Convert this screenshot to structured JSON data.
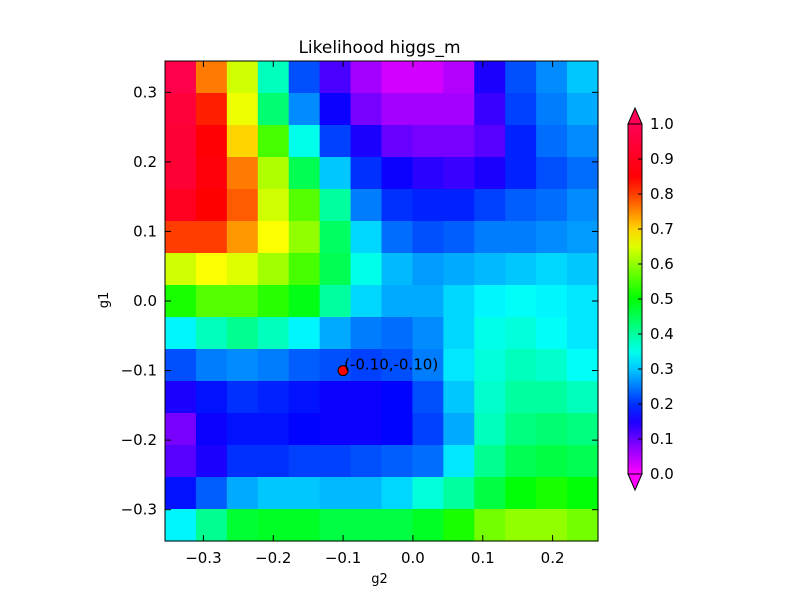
{
  "chart_data": {
    "type": "heatmap",
    "title": "Likelihood higgs_m",
    "xlabel": "g2",
    "ylabel": "g1",
    "xlim": [
      -0.355,
      0.265
    ],
    "ylim": [
      -0.345,
      0.345
    ],
    "x_ticks": [
      -0.3,
      -0.2,
      -0.1,
      0.0,
      0.1,
      0.2
    ],
    "x_tick_labels": [
      "−0.3",
      "−0.2",
      "−0.1",
      "0.0",
      "0.1",
      "0.2"
    ],
    "y_ticks": [
      0.3,
      0.2,
      0.1,
      0.0,
      -0.1,
      -0.2,
      -0.3
    ],
    "y_tick_labels": [
      "0.3",
      "0.2",
      "0.1",
      "0.0",
      "−0.1",
      "−0.2",
      "−0.3"
    ],
    "colorbar": {
      "ticks": [
        1.0,
        0.9,
        0.8,
        0.7,
        0.6,
        0.5,
        0.4,
        0.3,
        0.2,
        0.1,
        0.0
      ],
      "tick_labels": [
        "1.0",
        "0.9",
        "0.8",
        "0.7",
        "0.6",
        "0.5",
        "0.4",
        "0.3",
        "0.2",
        "0.1",
        "0.0"
      ],
      "range": [
        0,
        1
      ],
      "colormap": "gist_rainbow"
    },
    "marker": {
      "x": -0.1,
      "y": -0.1,
      "label": "(-0.10,-0.10)",
      "color": "#ff0000"
    },
    "grid": false,
    "rows_top_to_bottom": [
      [
        0.98,
        0.76,
        0.64,
        0.38,
        0.22,
        0.12,
        0.06,
        0.03,
        0.03,
        0.05,
        0.15,
        0.22,
        0.26,
        0.3
      ],
      [
        0.95,
        0.82,
        0.66,
        0.43,
        0.26,
        0.16,
        0.09,
        0.06,
        0.06,
        0.06,
        0.13,
        0.21,
        0.25,
        0.28
      ],
      [
        0.94,
        0.85,
        0.7,
        0.55,
        0.35,
        0.21,
        0.15,
        0.1,
        0.09,
        0.09,
        0.11,
        0.19,
        0.24,
        0.26
      ],
      [
        0.94,
        0.86,
        0.76,
        0.62,
        0.45,
        0.3,
        0.2,
        0.16,
        0.14,
        0.13,
        0.15,
        0.19,
        0.22,
        0.24
      ],
      [
        0.9,
        0.84,
        0.78,
        0.64,
        0.56,
        0.4,
        0.25,
        0.2,
        0.19,
        0.19,
        0.21,
        0.23,
        0.24,
        0.26
      ],
      [
        0.8,
        0.8,
        0.74,
        0.67,
        0.6,
        0.44,
        0.31,
        0.24,
        0.22,
        0.23,
        0.25,
        0.25,
        0.26,
        0.27
      ],
      [
        0.64,
        0.67,
        0.65,
        0.61,
        0.55,
        0.45,
        0.35,
        0.29,
        0.27,
        0.28,
        0.29,
        0.3,
        0.31,
        0.3
      ],
      [
        0.52,
        0.56,
        0.56,
        0.53,
        0.49,
        0.4,
        0.31,
        0.28,
        0.28,
        0.31,
        0.33,
        0.34,
        0.33,
        0.32
      ],
      [
        0.33,
        0.38,
        0.41,
        0.38,
        0.33,
        0.28,
        0.25,
        0.24,
        0.26,
        0.31,
        0.35,
        0.36,
        0.34,
        0.32
      ],
      [
        0.22,
        0.25,
        0.26,
        0.25,
        0.23,
        0.22,
        0.21,
        0.22,
        0.25,
        0.32,
        0.36,
        0.38,
        0.37,
        0.34
      ],
      [
        0.15,
        0.18,
        0.2,
        0.19,
        0.18,
        0.16,
        0.16,
        0.17,
        0.22,
        0.3,
        0.37,
        0.4,
        0.4,
        0.38
      ],
      [
        0.09,
        0.16,
        0.18,
        0.18,
        0.17,
        0.16,
        0.16,
        0.17,
        0.21,
        0.28,
        0.38,
        0.42,
        0.43,
        0.42
      ],
      [
        0.11,
        0.15,
        0.2,
        0.2,
        0.21,
        0.21,
        0.22,
        0.23,
        0.24,
        0.32,
        0.41,
        0.45,
        0.46,
        0.45
      ],
      [
        0.18,
        0.23,
        0.28,
        0.3,
        0.3,
        0.29,
        0.29,
        0.31,
        0.36,
        0.4,
        0.46,
        0.5,
        0.52,
        0.5
      ],
      [
        0.33,
        0.41,
        0.47,
        0.48,
        0.48,
        0.46,
        0.46,
        0.46,
        0.48,
        0.52,
        0.58,
        0.6,
        0.6,
        0.58
      ]
    ]
  }
}
